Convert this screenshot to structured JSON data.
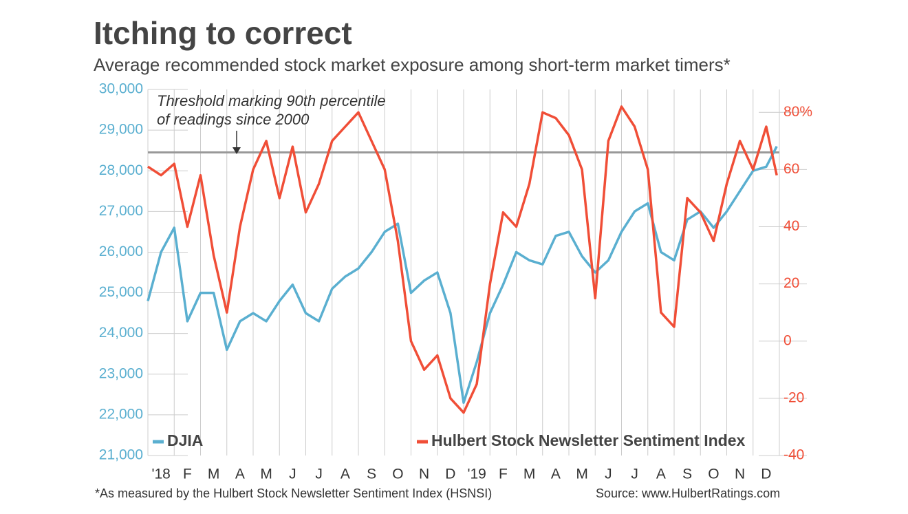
{
  "chart_data": {
    "type": "line",
    "title": "Itching to correct",
    "subtitle": "Average recommended stock market exposure among short-term market timers*",
    "annotation": [
      "Threshold marking 90th percentile",
      "of readings since 2000"
    ],
    "threshold": 66,
    "footnote": "*As measured by the Hulbert Stock Newsletter Sentiment Index (HSNSI)",
    "source": "Source: www.HulbertRatings.com",
    "x": [
      0,
      0.5,
      1,
      1.5,
      2,
      2.5,
      3,
      3.5,
      4,
      4.5,
      5,
      5.5,
      6,
      6.5,
      7,
      7.5,
      8,
      8.5,
      9,
      9.5,
      10,
      10.5,
      11,
      11.5,
      12,
      12.5,
      13,
      13.5,
      14,
      14.5,
      15,
      15.5,
      16,
      16.5,
      17,
      17.5,
      18,
      18.5,
      19,
      19.5,
      20,
      20.5,
      21,
      21.5,
      22,
      22.5,
      23,
      23.5,
      23.9
    ],
    "xlim": [
      0,
      24
    ],
    "xticks": [
      {
        "value": 0,
        "label": "'18"
      },
      {
        "value": 1,
        "label": "F"
      },
      {
        "value": 2,
        "label": "M"
      },
      {
        "value": 3,
        "label": "A"
      },
      {
        "value": 4,
        "label": "M"
      },
      {
        "value": 5,
        "label": "J"
      },
      {
        "value": 6,
        "label": "J"
      },
      {
        "value": 7,
        "label": "A"
      },
      {
        "value": 8,
        "label": "S"
      },
      {
        "value": 9,
        "label": "O"
      },
      {
        "value": 10,
        "label": "N"
      },
      {
        "value": 11,
        "label": "D"
      },
      {
        "value": 12,
        "label": "'19"
      },
      {
        "value": 13,
        "label": "F"
      },
      {
        "value": 14,
        "label": "M"
      },
      {
        "value": 15,
        "label": "A"
      },
      {
        "value": 16,
        "label": "M"
      },
      {
        "value": 17,
        "label": "J"
      },
      {
        "value": 18,
        "label": "J"
      },
      {
        "value": 19,
        "label": "A"
      },
      {
        "value": 20,
        "label": "S"
      },
      {
        "value": 21,
        "label": "O"
      },
      {
        "value": 22,
        "label": "N"
      },
      {
        "value": 23,
        "label": "D"
      }
    ],
    "ylim": [
      21000,
      30000
    ],
    "yticks": [
      {
        "value": 21000,
        "label": "21,000"
      },
      {
        "value": 22000,
        "label": "22,000"
      },
      {
        "value": 23000,
        "label": "23,000"
      },
      {
        "value": 24000,
        "label": "24,000"
      },
      {
        "value": 25000,
        "label": "25,000"
      },
      {
        "value": 26000,
        "label": "26,000"
      },
      {
        "value": 27000,
        "label": "27,000"
      },
      {
        "value": 28000,
        "label": "28,000"
      },
      {
        "value": 29000,
        "label": "29,000"
      },
      {
        "value": 30000,
        "label": "30,000"
      }
    ],
    "y2lim": [
      -40,
      88
    ],
    "y2ticks": [
      -40,
      -20,
      0,
      20,
      40,
      60,
      {
        "value": 80,
        "label": "80%"
      }
    ],
    "grid": true,
    "series": [
      {
        "name": "DJIA",
        "color": "#5aafd0",
        "values": [
          24800,
          26000,
          26600,
          24300,
          25000,
          25000,
          23600,
          24300,
          24500,
          24300,
          24800,
          25200,
          24500,
          24300,
          25100,
          25400,
          25600,
          26000,
          26500,
          26700,
          25000,
          25300,
          25500,
          24500,
          22300,
          23300,
          24500,
          25200,
          26000,
          25800,
          25700,
          26400,
          26500,
          25900,
          25500,
          25800,
          26500,
          27000,
          27200,
          26000,
          25800,
          26800,
          27000,
          26600,
          27000,
          27500,
          28000,
          28100,
          28600
        ]
      },
      {
        "name": "Hulbert Stock Newsletter Sentiment Index",
        "color": "#f04e37",
        "axis": "y2",
        "values": [
          61,
          58,
          62,
          40,
          58,
          30,
          10,
          40,
          60,
          70,
          50,
          68,
          45,
          55,
          70,
          75,
          80,
          70,
          60,
          35,
          0,
          -10,
          -5,
          -20,
          -25,
          -15,
          20,
          45,
          40,
          55,
          80,
          78,
          72,
          60,
          15,
          70,
          82,
          75,
          60,
          10,
          5,
          50,
          45,
          35,
          55,
          70,
          60,
          75,
          58
        ]
      }
    ]
  }
}
